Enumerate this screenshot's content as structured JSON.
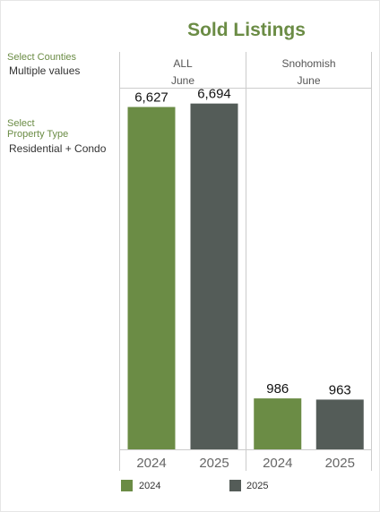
{
  "title": "Sold Listings",
  "filters": [
    {
      "label": "Select Counties",
      "value": "Multiple values"
    },
    {
      "label": "Select\nProperty Type",
      "value": "Residential + Condo"
    }
  ],
  "colors": {
    "accent": "#6b8c45",
    "series_2024": "#6b8c45",
    "series_2025": "#545c58"
  },
  "chart_data": {
    "type": "bar",
    "title": "Sold Listings",
    "month": "June",
    "panels": [
      {
        "name": "ALL",
        "month": "June",
        "categories": [
          "2024",
          "2025"
        ],
        "values": [
          6627,
          6694
        ],
        "labels": [
          "6,627",
          "6,694"
        ]
      },
      {
        "name": "Snohomish",
        "month": "June",
        "categories": [
          "2024",
          "2025"
        ],
        "values": [
          986,
          963
        ],
        "labels": [
          "986",
          "963"
        ]
      }
    ],
    "series": [
      {
        "name": "2024",
        "color": "#6b8c45"
      },
      {
        "name": "2025",
        "color": "#545c58"
      }
    ],
    "ylim": [
      0,
      7000
    ],
    "legend": "bottom",
    "grid": false
  },
  "legend": [
    {
      "label": "2024",
      "color": "#6b8c45"
    },
    {
      "label": "2025",
      "color": "#545c58"
    }
  ]
}
